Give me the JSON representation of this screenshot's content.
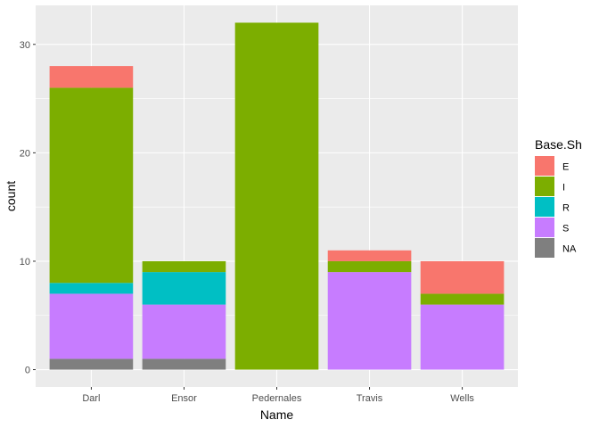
{
  "chart_data": {
    "type": "bar",
    "stacked": true,
    "categories": [
      "Darl",
      "Ensor",
      "Pedernales",
      "Travis",
      "Wells"
    ],
    "series": [
      {
        "name": "E",
        "color": "#F8766D",
        "values": [
          2,
          0,
          0,
          1,
          3
        ]
      },
      {
        "name": "I",
        "color": "#7CAE00",
        "values": [
          18,
          1,
          32,
          1,
          1
        ]
      },
      {
        "name": "R",
        "color": "#00BFC4",
        "values": [
          1,
          3,
          0,
          0,
          0
        ]
      },
      {
        "name": "S",
        "color": "#C77CFF",
        "values": [
          6,
          5,
          0,
          9,
          6
        ]
      },
      {
        "name": "NA",
        "color": "#7F7F7F",
        "values": [
          1,
          1,
          0,
          0,
          0
        ]
      }
    ],
    "stack_order_bottom_to_top": [
      "NA",
      "S",
      "R",
      "I",
      "E"
    ],
    "xlabel": "Name",
    "ylabel": "count",
    "ylim": [
      -1.6,
      33.6
    ],
    "y_ticks": [
      0,
      10,
      20,
      30
    ],
    "y_minor_ticks": [
      5,
      15,
      25
    ],
    "legend": {
      "title": "Base.Sh",
      "position": "right"
    },
    "grid": true,
    "panel_background": "#EBEBEB",
    "grid_color": "#FFFFFF"
  }
}
